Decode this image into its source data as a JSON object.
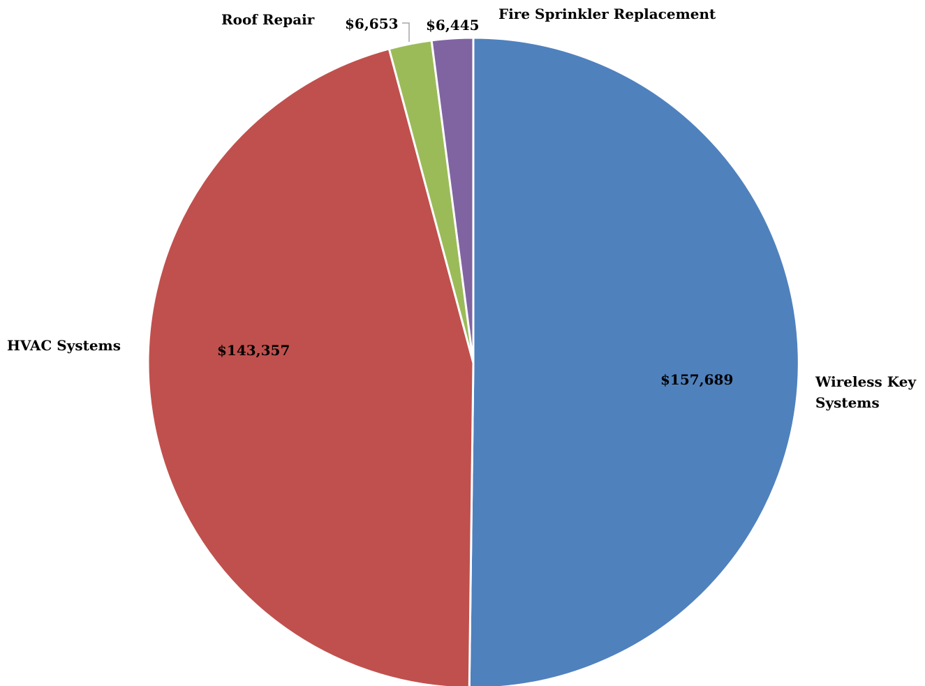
{
  "chart_data": {
    "type": "pie",
    "title": "",
    "slices": [
      {
        "label": "Wireless Key Systems",
        "value": 157689,
        "value_label": "$157,689",
        "color": "#4F81BD"
      },
      {
        "label": "HVAC Systems",
        "value": 143357,
        "value_label": "$143,357",
        "color": "#C0504D"
      },
      {
        "label": "Roof Repair",
        "value": 6653,
        "value_label": "$6,653",
        "color": "#9BBB59"
      },
      {
        "label": "Fire Sprinkler Replacement",
        "value": 6445,
        "value_label": "$6,445",
        "color": "#8064A2"
      }
    ],
    "legend": "none",
    "start_angle_deg": 0,
    "direction": "clockwise",
    "border_color": "#FFFFFF",
    "leader_line_color": "#A6A6A6"
  }
}
